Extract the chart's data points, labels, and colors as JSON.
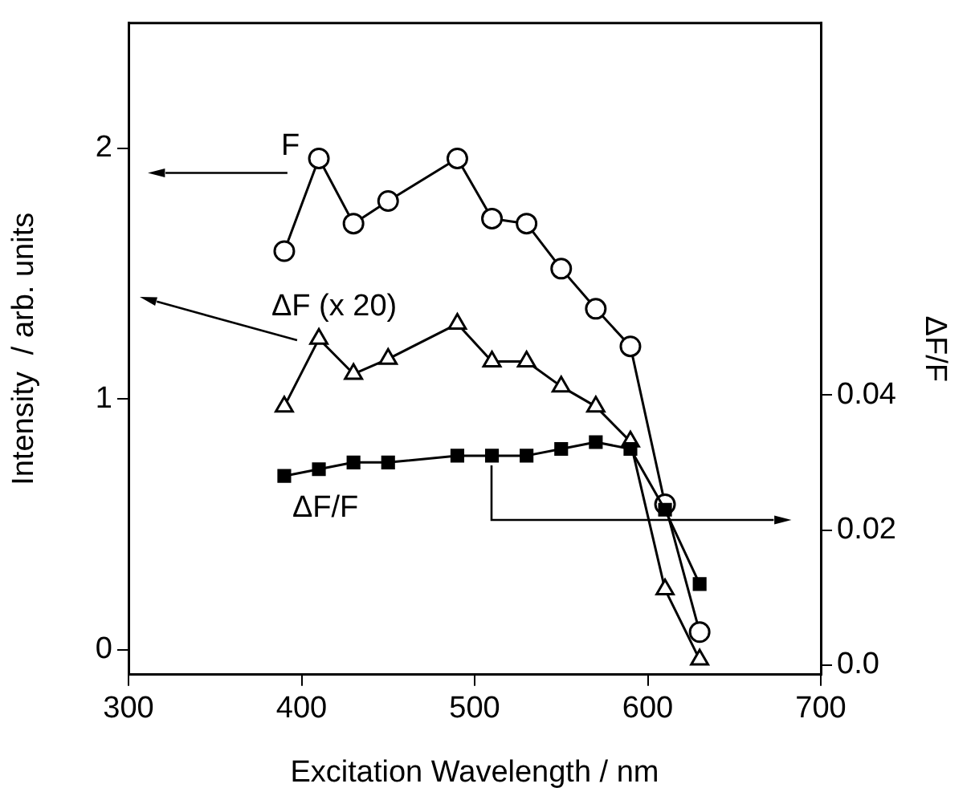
{
  "chart_data": {
    "type": "line",
    "xlabel": "Excitation Wavelength / nm",
    "ylabel": "Intensity  / arb. units",
    "y2label": "ΔF/F",
    "x": [
      390,
      410,
      430,
      450,
      490,
      510,
      530,
      550,
      570,
      590,
      610,
      630
    ],
    "series": [
      {
        "name": "F",
        "color": "#000000",
        "marker": "circle",
        "values": [
          1.59,
          1.96,
          1.7,
          1.79,
          1.96,
          1.72,
          1.7,
          1.52,
          1.36,
          1.21,
          0.58,
          0.07
        ]
      },
      {
        "name": "ΔF (x 20)",
        "color": "#000000",
        "marker": "triangle",
        "values": [
          0.97,
          1.24,
          1.1,
          1.16,
          1.3,
          1.15,
          1.15,
          1.05,
          0.97,
          0.83,
          0.24,
          -0.04
        ]
      },
      {
        "name": "ΔF/F",
        "color": "#000000",
        "marker": "square",
        "axis": "y2",
        "values": [
          0.028,
          0.029,
          0.03,
          0.03,
          0.031,
          0.031,
          0.031,
          0.032,
          0.033,
          0.032,
          0.023,
          0.012
        ]
      }
    ],
    "xlim": [
      300,
      700
    ],
    "xticks": [
      300,
      400,
      500,
      600,
      700
    ],
    "ylim": [
      -0.1,
      2.5
    ],
    "yticks": [
      0,
      1,
      2
    ],
    "y2lim": [
      -0.0014,
      0.095
    ],
    "y2ticks": [
      {
        "value": 0,
        "label": "0.0"
      },
      0.02,
      0.04
    ],
    "grid": false,
    "legend": false
  }
}
